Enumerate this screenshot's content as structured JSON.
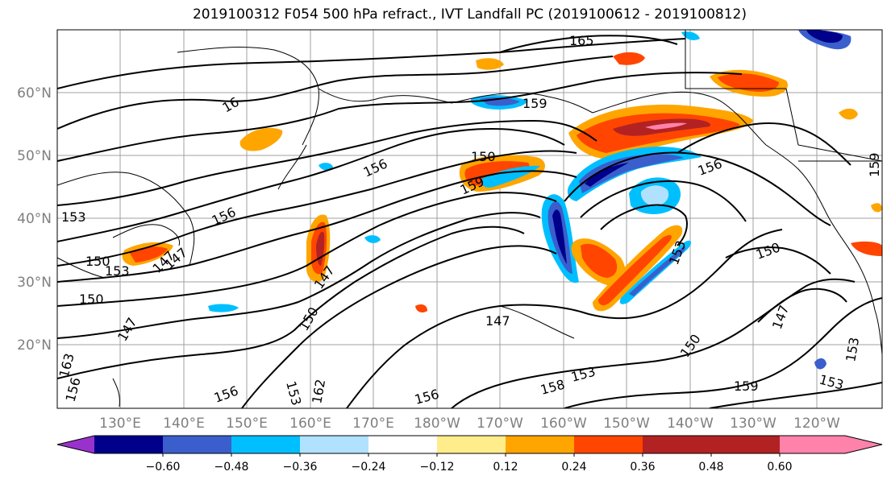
{
  "title": "2019100312 F054 500 hPa refract., IVT Landfall PC (2019100612 - 2019100812)",
  "latitude_labels": [
    "60°N",
    "50°N",
    "40°N",
    "30°N",
    "20°N"
  ],
  "longitude_labels": [
    "130°E",
    "140°E",
    "150°E",
    "160°E",
    "170°E",
    "180°W",
    "170°W",
    "160°W",
    "150°W",
    "140°W",
    "130°W",
    "120°W"
  ],
  "colorbar": {
    "ticks": [
      "−0.60",
      "−0.48",
      "−0.36",
      "−0.24",
      "−0.12",
      "0.12",
      "0.24",
      "0.36",
      "0.48",
      "0.60"
    ],
    "colors": [
      "#9932cc",
      "#00008b",
      "#3a5fcd",
      "#00bfff",
      "#b0e2ff",
      "#ffffff",
      "#ffec8b",
      "#ffa500",
      "#ff4500",
      "#b22222",
      "#ff82ab"
    ]
  },
  "contour_labels": [
    "165",
    "159",
    "16",
    "150",
    "156",
    "159",
    "156",
    "153",
    "156",
    "147",
    "150",
    "153",
    "147",
    "150",
    "147",
    "150",
    "147",
    "153",
    "150",
    "159",
    "156",
    "153",
    "162",
    "156",
    "153",
    "158",
    "147",
    "150",
    "153",
    "153",
    "159",
    "163",
    "156",
    "147"
  ]
}
